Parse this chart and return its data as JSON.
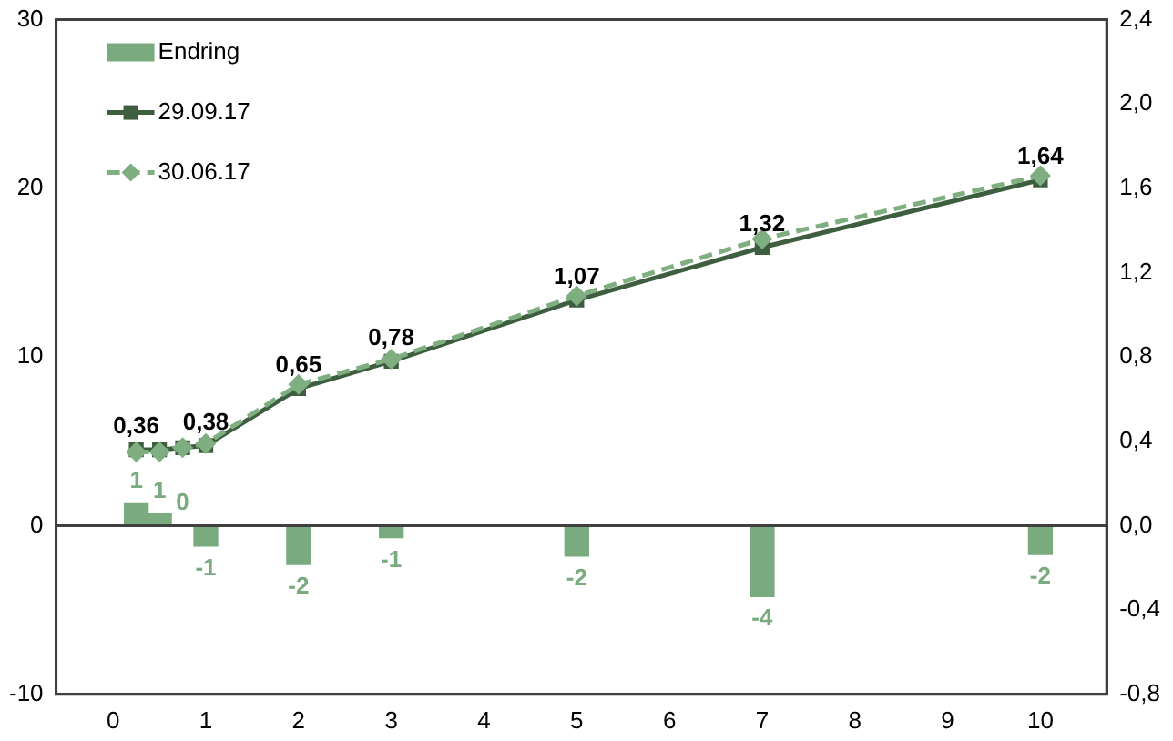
{
  "chart_data": {
    "type": "bar",
    "x": [
      0.25,
      0.5,
      0.75,
      1,
      2,
      3,
      5,
      7,
      10
    ],
    "series": [
      {
        "name": "Endring",
        "color": "#7aab7e",
        "values": [
          1.3,
          0.7,
          0,
          -1.2,
          -2.3,
          -0.7,
          -1.8,
          -4.2,
          -1.7
        ],
        "value_labels": [
          "1",
          "1",
          "0",
          "-1",
          "-2",
          "-1",
          "-2",
          "-4",
          "-2"
        ]
      },
      {
        "name": "29.09.17",
        "type": "line",
        "axis": "y2",
        "color": "#3d5e3f",
        "marker": "square",
        "line_style": "solid",
        "values": [
          0.36,
          0.36,
          0.37,
          0.38,
          0.65,
          0.78,
          1.07,
          1.32,
          1.64
        ],
        "value_labels": [
          "0,36",
          null,
          null,
          "0,38",
          "0,65",
          "0,78",
          "1,07",
          "1,32",
          "1,64"
        ]
      },
      {
        "name": "30.06.17",
        "type": "line",
        "axis": "y2",
        "color": "#7fae80",
        "marker": "diamond",
        "line_style": "dashed",
        "values": [
          0.35,
          0.35,
          0.37,
          0.39,
          0.67,
          0.79,
          1.09,
          1.36,
          1.66
        ]
      }
    ],
    "xlim": [
      -0.1,
      10.2
    ],
    "xticks": [
      0,
      1,
      2,
      3,
      4,
      5,
      6,
      7,
      8,
      9,
      10
    ],
    "ylim": [
      -10,
      30
    ],
    "yticks": [
      -10,
      0,
      10,
      20,
      30
    ],
    "y2lim": [
      -0.8,
      2.4
    ],
    "y2ticks": [
      {
        "value": -0.8,
        "label": "-0,8"
      },
      {
        "value": -0.4,
        "label": "-0,4"
      },
      {
        "value": 0,
        "label": "0,0"
      },
      {
        "value": 0.4,
        "label": "0,4"
      },
      {
        "value": 0.8,
        "label": "0,8"
      },
      {
        "value": 1.2,
        "label": "1,2"
      },
      {
        "value": 1.6,
        "label": "1,6"
      },
      {
        "value": 2.0,
        "label": "2,0"
      },
      {
        "value": 2.4,
        "label": "2,4"
      }
    ],
    "ref_lines": [
      {
        "axis": "y",
        "value": 0,
        "color": "#404040"
      }
    ],
    "grid": false,
    "legend": "top left"
  }
}
